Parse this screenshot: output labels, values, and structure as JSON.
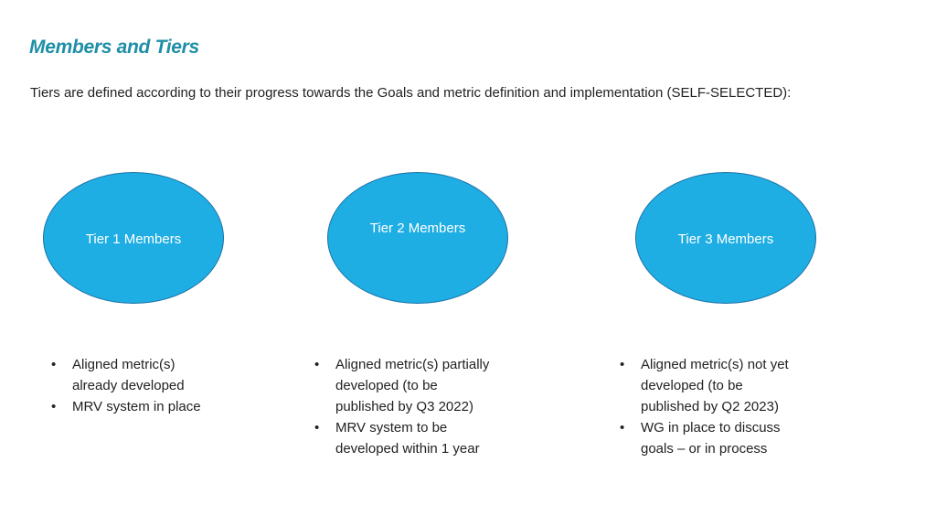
{
  "title": "Members and Tiers",
  "subtitle": "Tiers are defined according to their progress towards the Goals and metric definition and implementation (SELF-SELECTED):",
  "colors": {
    "title": "#1e8fa6",
    "oval_fill": "#1faee3",
    "oval_border": "#1b72a8"
  },
  "tiers": [
    {
      "label": "Tier 1 Members",
      "lines": [
        [
          "Aligned metric(s)",
          "already developed"
        ],
        [
          "MRV system in place"
        ]
      ]
    },
    {
      "label": "Tier 2 Members",
      "lines": [
        [
          "Aligned metric(s) partially",
          "developed (to be",
          "published by Q3 2022)"
        ],
        [
          "MRV system to be",
          "developed within 1 year"
        ]
      ]
    },
    {
      "label": "Tier 3 Members",
      "lines": [
        [
          "Aligned metric(s) not yet",
          "developed (to be",
          "published by Q2 2023)"
        ],
        [
          "WG in place to discuss",
          "goals – or in process"
        ]
      ]
    }
  ]
}
